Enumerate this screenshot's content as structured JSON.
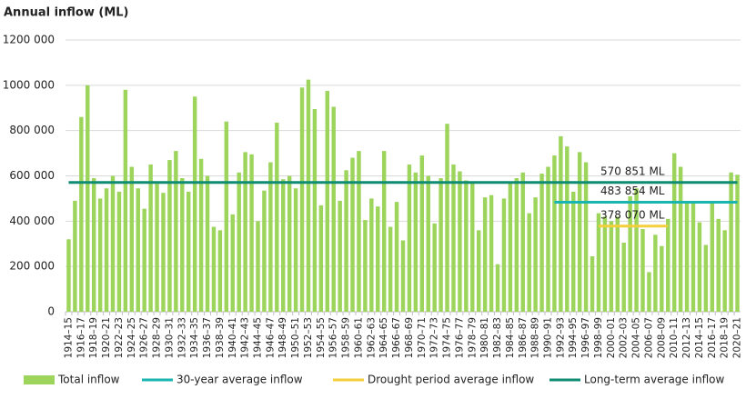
{
  "chart_data": {
    "type": "bar",
    "title": "Annual inflow (ML)",
    "categories": [
      "1914–15",
      null,
      "1916–17",
      null,
      "1918–19",
      null,
      "1920–21",
      null,
      "1922–23",
      null,
      "1924–25",
      null,
      "1926–27",
      null,
      "1928–29",
      null,
      "1930–31",
      null,
      "1932–33",
      null,
      "1934–35",
      null,
      "1936–37",
      null,
      "1938–39",
      null,
      "1940–41",
      null,
      "1942–43",
      null,
      "1944–45",
      null,
      "1946–47",
      null,
      "1948–49",
      null,
      "1950–51",
      null,
      "1952–53",
      null,
      "1954–55",
      null,
      "1956–57",
      null,
      "1958–59",
      null,
      "1960–61",
      null,
      "1962–63",
      null,
      "1964–65",
      null,
      "1966–67",
      null,
      "1968–69",
      null,
      "1970–71",
      null,
      "1972–73",
      null,
      "1974–75",
      null,
      "1976–77",
      null,
      "1978–79",
      null,
      "1980–81",
      null,
      "1982–83",
      null,
      "1984–85",
      null,
      "1986–87",
      null,
      "1988–89",
      null,
      "1990–91",
      null,
      "1992–93",
      null,
      "1994–95",
      null,
      "1996–97",
      null,
      "1998–99",
      null,
      "2000–01",
      null,
      "2002–03",
      null,
      "2004–05",
      null,
      "2006–07",
      null,
      "2008–09",
      null,
      "2010–11",
      null,
      "2012–13",
      null,
      "2014–15",
      null,
      "2016–17",
      null,
      "2018–19",
      null,
      "2020–21"
    ],
    "series": [
      {
        "name": "Total inflow",
        "type": "bar",
        "color": "#9dd55c",
        "values": [
          320000,
          490000,
          860000,
          1000000,
          590000,
          500000,
          545000,
          600000,
          530000,
          980000,
          640000,
          545000,
          455000,
          650000,
          565000,
          525000,
          670000,
          710000,
          590000,
          530000,
          950000,
          675000,
          600000,
          375000,
          360000,
          840000,
          430000,
          615000,
          705000,
          695000,
          400000,
          535000,
          660000,
          835000,
          585000,
          600000,
          545000,
          990000,
          1025000,
          895000,
          470000,
          975000,
          905000,
          490000,
          625000,
          680000,
          710000,
          405000,
          500000,
          465000,
          710000,
          375000,
          485000,
          315000,
          650000,
          615000,
          690000,
          600000,
          390000,
          590000,
          830000,
          650000,
          620000,
          580000,
          570000,
          360000,
          505000,
          515000,
          210000,
          500000,
          570000,
          590000,
          615000,
          435000,
          505000,
          610000,
          640000,
          690000,
          775000,
          730000,
          530000,
          705000,
          660000,
          245000,
          435000,
          420000,
          400000,
          420000,
          305000,
          510000,
          545000,
          365000,
          175000,
          340000,
          290000,
          410000,
          700000,
          640000,
          480000,
          480000,
          395000,
          295000,
          480000,
          410000,
          360000,
          615000,
          605000
        ]
      },
      {
        "name": "30-year average inflow",
        "type": "line",
        "color": "#1ab5b0",
        "value_label": "483 854 ML",
        "values": [
          null,
          null,
          null,
          null,
          null,
          null,
          null,
          null,
          null,
          null,
          null,
          null,
          null,
          null,
          null,
          null,
          null,
          null,
          null,
          null,
          null,
          null,
          null,
          null,
          null,
          null,
          null,
          null,
          null,
          null,
          null,
          null,
          null,
          null,
          null,
          null,
          null,
          null,
          null,
          null,
          null,
          null,
          null,
          null,
          null,
          null,
          null,
          null,
          null,
          null,
          null,
          null,
          null,
          null,
          null,
          null,
          null,
          null,
          null,
          null,
          null,
          null,
          null,
          null,
          null,
          null,
          null,
          null,
          null,
          null,
          null,
          null,
          null,
          null,
          null,
          null,
          null,
          483854,
          483854,
          483854,
          483854,
          483854,
          483854,
          483854,
          483854,
          483854,
          483854,
          483854,
          483854,
          483854,
          483854,
          483854,
          483854,
          483854,
          483854,
          483854,
          483854,
          483854,
          483854,
          483854,
          483854,
          483854,
          483854,
          483854,
          483854,
          483854,
          483854
        ]
      },
      {
        "name": "Drought period average inflow",
        "type": "line",
        "color": "#f3cf3c",
        "value_label": "378 070 ML",
        "values": [
          null,
          null,
          null,
          null,
          null,
          null,
          null,
          null,
          null,
          null,
          null,
          null,
          null,
          null,
          null,
          null,
          null,
          null,
          null,
          null,
          null,
          null,
          null,
          null,
          null,
          null,
          null,
          null,
          null,
          null,
          null,
          null,
          null,
          null,
          null,
          null,
          null,
          null,
          null,
          null,
          null,
          null,
          null,
          null,
          null,
          null,
          null,
          null,
          null,
          null,
          null,
          null,
          null,
          null,
          null,
          null,
          null,
          null,
          null,
          null,
          null,
          null,
          null,
          null,
          null,
          null,
          null,
          null,
          null,
          null,
          null,
          null,
          null,
          null,
          null,
          null,
          null,
          null,
          null,
          null,
          null,
          null,
          null,
          null,
          378070,
          378070,
          378070,
          378070,
          378070,
          378070,
          378070,
          378070,
          378070,
          378070,
          378070,
          378070,
          null,
          null,
          null,
          null,
          null,
          null,
          null,
          null,
          null,
          null,
          null
        ]
      },
      {
        "name": "Long-term average inflow",
        "type": "line",
        "color": "#0f8c73",
        "value_label": "570 851 ML",
        "values": [
          570851,
          570851,
          570851,
          570851,
          570851,
          570851,
          570851,
          570851,
          570851,
          570851,
          570851,
          570851,
          570851,
          570851,
          570851,
          570851,
          570851,
          570851,
          570851,
          570851,
          570851,
          570851,
          570851,
          570851,
          570851,
          570851,
          570851,
          570851,
          570851,
          570851,
          570851,
          570851,
          570851,
          570851,
          570851,
          570851,
          570851,
          570851,
          570851,
          570851,
          570851,
          570851,
          570851,
          570851,
          570851,
          570851,
          570851,
          570851,
          570851,
          570851,
          570851,
          570851,
          570851,
          570851,
          570851,
          570851,
          570851,
          570851,
          570851,
          570851,
          570851,
          570851,
          570851,
          570851,
          570851,
          570851,
          570851,
          570851,
          570851,
          570851,
          570851,
          570851,
          570851,
          570851,
          570851,
          570851,
          570851,
          570851,
          570851,
          570851,
          570851,
          570851,
          570851,
          570851,
          570851,
          570851,
          570851,
          570851,
          570851,
          570851,
          570851,
          570851,
          570851,
          570851,
          570851,
          570851,
          570851,
          570851,
          570851,
          570851,
          570851,
          570851,
          570851,
          570851,
          570851,
          570851,
          570851
        ]
      }
    ],
    "ylim": [
      0,
      1200000
    ],
    "yticks": [
      0,
      {
        "value": 200000,
        "label": "200 000"
      },
      {
        "value": 400000,
        "label": "400 000"
      },
      {
        "value": 600000,
        "label": "600 000"
      },
      {
        "value": 800000,
        "label": "800 000"
      },
      {
        "value": 1000000,
        "label": "1000 000"
      },
      {
        "value": 1200000,
        "label": "1200 000"
      }
    ],
    "grid": true,
    "legend": "bottom"
  }
}
